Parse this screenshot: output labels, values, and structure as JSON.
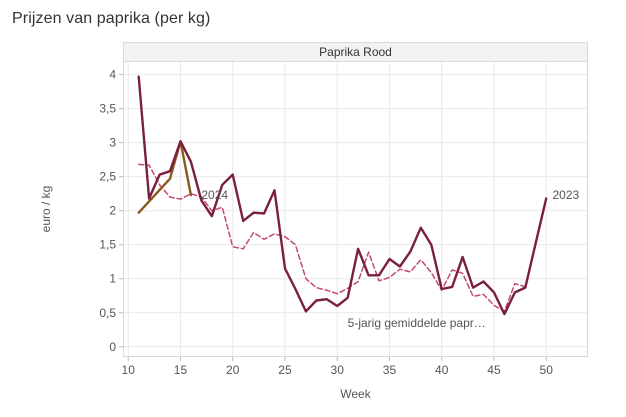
{
  "title": "Prijzen van paprika (per kg)",
  "chart_data": {
    "type": "line",
    "title": "Prijzen van paprika (per kg)",
    "panel_title": "Paprika Rood",
    "xlabel": "Week",
    "ylabel": "euro / kg",
    "xlim": [
      9.5,
      54
    ],
    "ylim": [
      -0.15,
      4.2
    ],
    "x_ticks": [
      10,
      15,
      20,
      25,
      30,
      35,
      40,
      45,
      50
    ],
    "x_tick_labels": [
      "10",
      "15",
      "20",
      "25",
      "30",
      "35",
      "40",
      "45",
      "50"
    ],
    "y_ticks": [
      0,
      0.5,
      1,
      1.5,
      2,
      2.5,
      3,
      3.5,
      4
    ],
    "y_tick_labels": [
      "0",
      "0,5",
      "1",
      "1,5",
      "2",
      "2,5",
      "3",
      "3,5",
      "4"
    ],
    "grid": true,
    "series": [
      {
        "name": "5-jarig gemiddelde papr…",
        "style": "dashed",
        "color": "#c44a72",
        "x": [
          11,
          12,
          13,
          14,
          15,
          16,
          17,
          18,
          19,
          20,
          21,
          22,
          23,
          24,
          25,
          26,
          27,
          28,
          29,
          30,
          31,
          32,
          33,
          34,
          35,
          36,
          37,
          38,
          39,
          40,
          41,
          42,
          43,
          44,
          45,
          46,
          47,
          48
        ],
        "values": [
          2.68,
          2.67,
          2.38,
          2.2,
          2.17,
          2.25,
          2.2,
          2.0,
          2.05,
          1.47,
          1.44,
          1.68,
          1.58,
          1.66,
          1.62,
          1.5,
          1.0,
          0.87,
          0.83,
          0.78,
          0.86,
          0.96,
          1.39,
          0.97,
          1.02,
          1.14,
          1.1,
          1.28,
          1.09,
          0.83,
          1.13,
          1.08,
          0.74,
          0.77,
          0.61,
          0.52,
          0.93,
          0.88
        ]
      },
      {
        "name": "2024",
        "style": "solid",
        "color": "#8b5a1f",
        "x": [
          11,
          14,
          15,
          16
        ],
        "values": [
          1.97,
          2.47,
          3.02,
          2.23
        ]
      },
      {
        "name": "2023",
        "style": "solid",
        "color": "#7a1f3d",
        "x": [
          11,
          12,
          13,
          14,
          15,
          16,
          17,
          18,
          19,
          20,
          21,
          22,
          23,
          24,
          25,
          26,
          27,
          28,
          29,
          30,
          31,
          32,
          33,
          34,
          35,
          36,
          37,
          38,
          39,
          40,
          41,
          42,
          43,
          44,
          45,
          46,
          47,
          48,
          49,
          50
        ],
        "values": [
          3.97,
          2.18,
          2.53,
          2.58,
          3.02,
          2.72,
          2.15,
          1.92,
          2.38,
          2.53,
          1.85,
          1.97,
          1.96,
          2.3,
          1.15,
          0.85,
          0.52,
          0.68,
          0.7,
          0.6,
          0.72,
          1.44,
          1.05,
          1.05,
          1.29,
          1.18,
          1.4,
          1.75,
          1.5,
          0.85,
          0.88,
          1.32,
          0.87,
          0.96,
          0.8,
          0.48,
          0.8,
          0.87,
          1.53,
          2.18
        ]
      }
    ],
    "annotations": [
      {
        "text": "2024",
        "x": 17,
        "y": 2.23
      },
      {
        "text": "2023",
        "x": 50.6,
        "y": 2.23
      },
      {
        "text": "5-jarig gemiddelde papr…",
        "x": 31,
        "y": 0.35
      }
    ]
  }
}
